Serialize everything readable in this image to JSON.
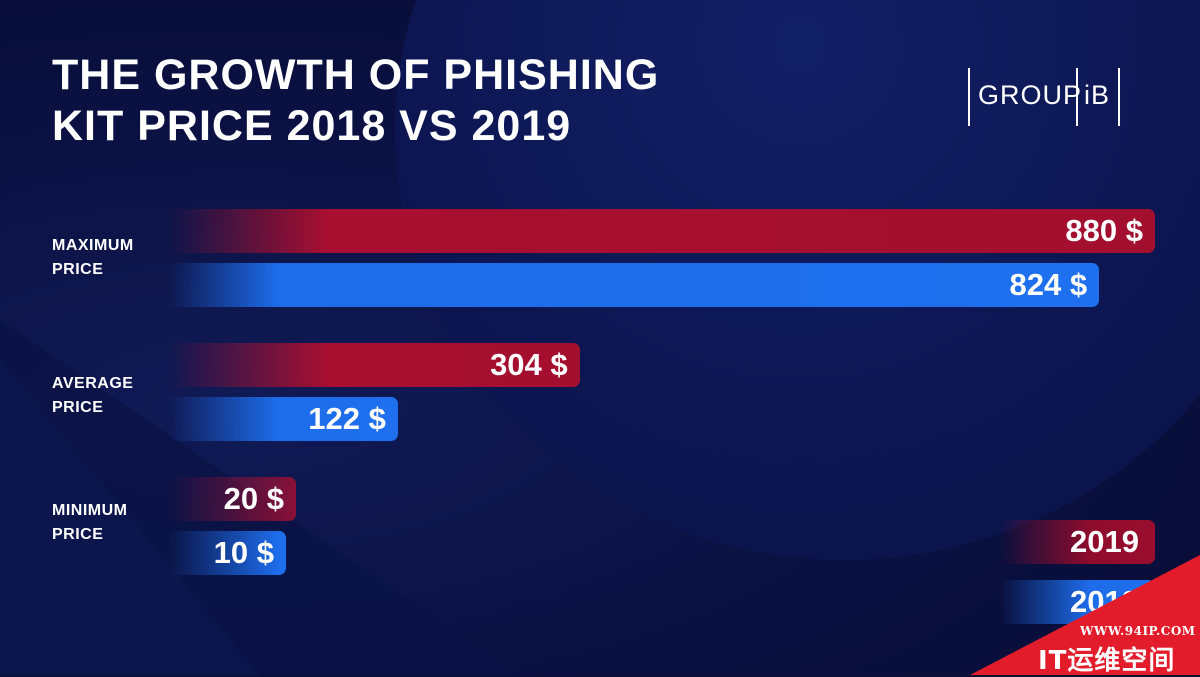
{
  "title": {
    "line1": "THE GROWTH OF PHISHING",
    "line2": "KIT PRICE 2018 VS 2019"
  },
  "logo": {
    "part1": "GROUP",
    "part2": "iB"
  },
  "colors": {
    "series_2019": "#a80f30",
    "series_2018": "#1f70ee",
    "background": "#0a1038"
  },
  "chart_data": {
    "type": "bar",
    "orientation": "horizontal",
    "title": "THE GROWTH OF PHISHING KIT PRICE 2018 VS 2019",
    "categories": [
      "MAXIMUM PRICE",
      "AVERAGE PRICE",
      "MINIMUM PRICE"
    ],
    "category_labels": [
      [
        "MAXIMUM",
        "PRICE"
      ],
      [
        "AVERAGE",
        "PRICE"
      ],
      [
        "MINIMUM",
        "PRICE"
      ]
    ],
    "series": [
      {
        "name": "2019",
        "values": [
          880,
          304,
          20
        ],
        "labels": [
          "880 $",
          "304 $",
          "20 $"
        ]
      },
      {
        "name": "2018",
        "values": [
          824,
          122,
          10
        ],
        "labels": [
          "824 $",
          "122 $",
          "10 $"
        ]
      }
    ],
    "grid": false,
    "legend": "bottom-right",
    "unit": "$"
  },
  "watermark": {
    "url": "WWW.94IP.COM",
    "name": "IT运维空间"
  }
}
